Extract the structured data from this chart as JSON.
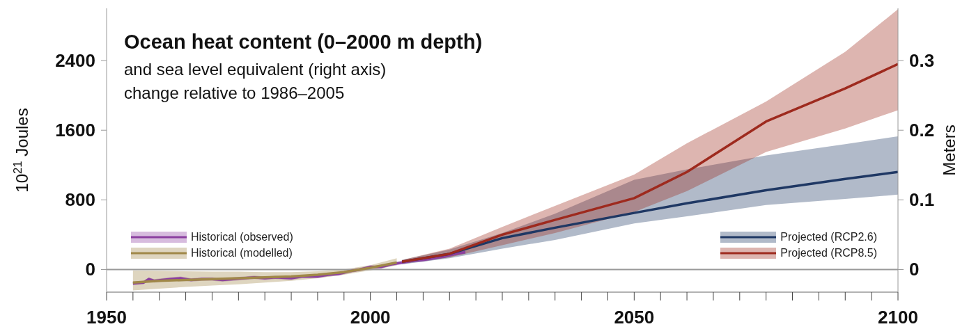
{
  "chart_data": {
    "type": "line",
    "title": "Ocean heat content (0–2000 m depth)",
    "subtitle": "and sea level equivalent (right axis)\nchange relative to 1986–2005",
    "ylabel": "10$^{21}$ Joules",
    "y2label": "Meters",
    "xlim": [
      1950,
      2100
    ],
    "xticks": [
      1950,
      {
        "value": 1955,
        "label": null
      },
      {
        "value": 1960,
        "label": null
      },
      {
        "value": 1965,
        "label": null
      },
      {
        "value": 1970,
        "label": null
      },
      {
        "value": 1975,
        "label": null
      },
      {
        "value": 1980,
        "label": null
      },
      {
        "value": 1985,
        "label": null
      },
      {
        "value": 1990,
        "label": null
      },
      {
        "value": 1995,
        "label": null
      },
      2000,
      {
        "value": 2005,
        "label": null
      },
      {
        "value": 2010,
        "label": null
      },
      {
        "value": 2015,
        "label": null
      },
      {
        "value": 2020,
        "label": null
      },
      {
        "value": 2025,
        "label": null
      },
      {
        "value": 2030,
        "label": null
      },
      {
        "value": 2035,
        "label": null
      },
      {
        "value": 2040,
        "label": null
      },
      {
        "value": 2045,
        "label": null
      },
      2050,
      {
        "value": 2055,
        "label": null
      },
      {
        "value": 2060,
        "label": null
      },
      {
        "value": 2065,
        "label": null
      },
      {
        "value": 2070,
        "label": null
      },
      {
        "value": 2075,
        "label": null
      },
      {
        "value": 2080,
        "label": null
      },
      {
        "value": 2085,
        "label": null
      },
      {
        "value": 2090,
        "label": null
      },
      {
        "value": 2095,
        "label": null
      },
      2100
    ],
    "ylim": [
      -260,
      3000
    ],
    "yticks": [
      0,
      800,
      1600,
      2400
    ],
    "y2lim": [
      -0.0325,
      0.375
    ],
    "y2ticks": [
      0,
      0.1,
      0.2,
      0.3
    ],
    "ref_lines": [
      {
        "axis": "y",
        "value": 0,
        "color": "#999999"
      }
    ],
    "legend": "bottom",
    "marker": "none",
    "line_style": "solid",
    "series": [
      {
        "name": "Historical (observed)",
        "color": "#8b3fa0",
        "x": [
          1955,
          1957,
          1958,
          1959,
          1962,
          1964,
          1966,
          1968,
          1970,
          1972,
          1974,
          1976,
          1978,
          1980,
          1982,
          1985,
          1987,
          1990,
          1992,
          1994,
          1996,
          1998,
          2000,
          2002,
          2004,
          2006,
          2008,
          2010,
          2012,
          2014,
          2016,
          2018
        ],
        "values": [
          -160,
          -150,
          -110,
          -130,
          -110,
          -100,
          -120,
          -110,
          -110,
          -120,
          -110,
          -100,
          -90,
          -100,
          -90,
          -100,
          -80,
          -80,
          -60,
          -50,
          -20,
          0,
          30,
          30,
          60,
          80,
          100,
          110,
          130,
          150,
          180,
          200
        ],
        "lower": [
          -180,
          -170,
          -130,
          -150,
          -130,
          -120,
          -140,
          -130,
          -130,
          -140,
          -130,
          -120,
          -110,
          -120,
          -110,
          -120,
          -100,
          -100,
          -80,
          -70,
          -40,
          -20,
          10,
          10,
          40,
          60,
          80,
          90,
          110,
          130,
          160,
          180
        ],
        "upper": [
          -140,
          -130,
          -90,
          -110,
          -90,
          -80,
          -100,
          -90,
          -90,
          -100,
          -90,
          -80,
          -70,
          -80,
          -70,
          -80,
          -60,
          -60,
          -40,
          -30,
          0,
          20,
          50,
          50,
          80,
          100,
          120,
          130,
          150,
          170,
          200,
          220
        ]
      },
      {
        "name": "Historical (modelled)",
        "color": "#a08848",
        "x": [
          1955,
          1960,
          1965,
          1970,
          1975,
          1980,
          1985,
          1990,
          1995,
          2000,
          2005
        ],
        "values": [
          -150,
          -130,
          -120,
          -110,
          -100,
          -90,
          -80,
          -60,
          -30,
          20,
          80
        ],
        "lower": [
          -240,
          -220,
          -200,
          -185,
          -170,
          -150,
          -130,
          -100,
          -60,
          -10,
          50
        ],
        "upper": [
          -10,
          -15,
          -20,
          -25,
          -25,
          -30,
          -30,
          -20,
          0,
          50,
          130
        ]
      },
      {
        "name": "Projected (RCP2.6)",
        "color": "#1f3864",
        "x": [
          2006,
          2015,
          2025,
          2035,
          2050,
          2060,
          2075,
          2090,
          2100
        ],
        "values": [
          90,
          180,
          360,
          480,
          650,
          760,
          910,
          1040,
          1120
        ],
        "lower": [
          60,
          130,
          240,
          340,
          530,
          610,
          740,
          810,
          860
        ],
        "upper": [
          110,
          230,
          420,
          640,
          1030,
          1150,
          1310,
          1440,
          1530
        ]
      },
      {
        "name": "Projected (RCP8.5)",
        "color": "#9e2a1e",
        "x": [
          2006,
          2015,
          2025,
          2035,
          2050,
          2060,
          2075,
          2090,
          2100
        ],
        "values": [
          90,
          180,
          400,
          570,
          820,
          1120,
          1700,
          2080,
          2360
        ],
        "lower": [
          70,
          140,
          280,
          420,
          660,
          900,
          1350,
          1620,
          1830
        ],
        "upper": [
          110,
          240,
          490,
          730,
          1090,
          1450,
          1930,
          2500,
          2990
        ]
      }
    ]
  }
}
